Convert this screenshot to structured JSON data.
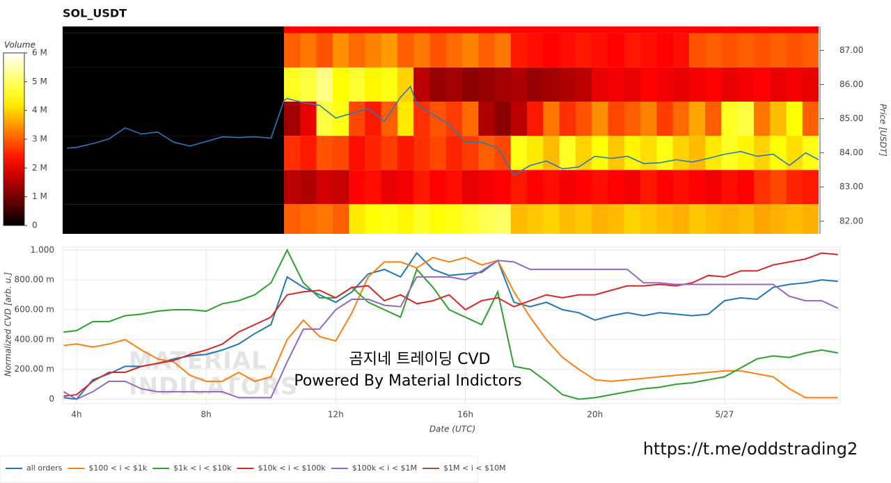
{
  "chart_data": [
    {
      "type": "heatmap",
      "title": "SOL_USDT",
      "x_bins": [
        3.57,
        10.4,
        10.9,
        11.4,
        11.9,
        12.4,
        12.9,
        13.4,
        13.9,
        14.4,
        14.9,
        15.4,
        15.9,
        16.4,
        16.9,
        17.4,
        17.9,
        18.4,
        18.9,
        19.4,
        19.9,
        20.4,
        20.9,
        21.4,
        21.9,
        22.4,
        22.9,
        23.4,
        23.9,
        24.4,
        24.9,
        25.4,
        25.9,
        26.4,
        26.9
      ],
      "y_bins": [
        81.5,
        82.5,
        83.5,
        84.5,
        85.5,
        86.5,
        87.5,
        88.5
      ],
      "z": [
        [
          0,
          3000000.0,
          3100000.0,
          3200000.0,
          3000000.0,
          4200000.0,
          4400000.0,
          4500000.0,
          4300000.0,
          4600000.0,
          4400000.0,
          4500000.0,
          4700000.0,
          4900000.0,
          5000000.0,
          3800000.0,
          3900000.0,
          4000000.0,
          3800000.0,
          3900000.0,
          3700000.0,
          3800000.0,
          4000000.0,
          3900000.0,
          3800000.0,
          3700000.0,
          3900000.0,
          3800000.0,
          3700000.0,
          3800000.0,
          3600000.0,
          3700000.0,
          3800000.0,
          3700000.0
        ],
        [
          0,
          1600000.0,
          1500000.0,
          1800000.0,
          1700000.0,
          2200000.0,
          2300000.0,
          2000000.0,
          2100000.0,
          2400000.0,
          2200000.0,
          2300000.0,
          2000000.0,
          2100000.0,
          2200000.0,
          2400000.0,
          2200000.0,
          2300000.0,
          2100000.0,
          2200000.0,
          2300000.0,
          2200000.0,
          2100000.0,
          2400000.0,
          2200000.0,
          2300000.0,
          2200000.0,
          2100000.0,
          2300000.0,
          2200000.0,
          2600000.0,
          2800000.0,
          2500000.0,
          2400000.0
        ],
        [
          0,
          2600000.0,
          2400000.0,
          2900000.0,
          2800000.0,
          2300000.0,
          2500000.0,
          2700000.0,
          2400000.0,
          2600000.0,
          2800000.0,
          2500000.0,
          2700000.0,
          3000000.0,
          2800000.0,
          4500000.0,
          4200000.0,
          3800000.0,
          4600000.0,
          4000000.0,
          4400000.0,
          3900000.0,
          4300000.0,
          4100000.0,
          4500000.0,
          4000000.0,
          3800000.0,
          4200000.0,
          4600000.0,
          4300000.0,
          4000000.0,
          4400000.0,
          4100000.0,
          4500000.0
        ],
        [
          0,
          1400000.0,
          2000000.0,
          4800000.0,
          4500000.0,
          2800000.0,
          2400000.0,
          3000000.0,
          4200000.0,
          2600000.0,
          2900000.0,
          2700000.0,
          3100000.0,
          1500000.0,
          1200000.0,
          1600000.0,
          2400000.0,
          3200000.0,
          2600000.0,
          2900000.0,
          3400000.0,
          2800000.0,
          3000000.0,
          3300000.0,
          2700000.0,
          3100000.0,
          3600000.0,
          3000000.0,
          4600000.0,
          4800000.0,
          3200000.0,
          3800000.0,
          4400000.0,
          3000000.0
        ],
        [
          0,
          4600000.0,
          4800000.0,
          5200000.0,
          4400000.0,
          4700000.0,
          4300000.0,
          4500000.0,
          4000000.0,
          1600000.0,
          1300000.0,
          1400000.0,
          1200000.0,
          1300000.0,
          1400000.0,
          1500000.0,
          1300000.0,
          1400000.0,
          1500000.0,
          1600000.0,
          2000000.0,
          2100000.0,
          2000000.0,
          2200000.0,
          2100000.0,
          2000000.0,
          2100000.0,
          2200000.0,
          2000000.0,
          2100000.0,
          2200000.0,
          2000000.0,
          2100000.0,
          2000000.0
        ],
        [
          0,
          3000000.0,
          3200000.0,
          2900000.0,
          3400000.0,
          3100000.0,
          3300000.0,
          3500000.0,
          3000000.0,
          3200000.0,
          2900000.0,
          3100000.0,
          3300000.0,
          3000000.0,
          3200000.0,
          2400000.0,
          2300000.0,
          2200000.0,
          2300000.0,
          2400000.0,
          2300000.0,
          2200000.0,
          2400000.0,
          2300000.0,
          2200000.0,
          2300000.0,
          2900000.0,
          3000000.0,
          2900000.0,
          3000000.0,
          2900000.0,
          3000000.0,
          2900000.0,
          3000000.0
        ],
        [
          0,
          2200000.0,
          2200000.0,
          2200000.0,
          2200000.0,
          2200000.0,
          2200000.0,
          2200000.0,
          2200000.0,
          2200000.0,
          2200000.0,
          2200000.0,
          2200000.0,
          2200000.0,
          2200000.0,
          2200000.0,
          2200000.0,
          2200000.0,
          2200000.0,
          2200000.0,
          2200000.0,
          2200000.0,
          2200000.0,
          2200000.0,
          2200000.0,
          2200000.0,
          2200000.0,
          2200000.0,
          2200000.0,
          2200000.0,
          2200000.0,
          2200000.0,
          2200000.0,
          2200000.0
        ]
      ],
      "colorbar": {
        "label": "Volume",
        "clim": [
          0,
          6000000.0
        ],
        "ticks": [
          0,
          {
            "value": 1000000.0,
            "label": "1 M"
          },
          {
            "value": 2000000.0,
            "label": "2 M"
          },
          {
            "value": 3000000.0,
            "label": "3 M"
          },
          {
            "value": 4000000.0,
            "label": "4 M"
          },
          {
            "value": 5000000.0,
            "label": "5 M"
          },
          {
            "value": 6000000.0,
            "label": "6 M"
          }
        ]
      },
      "xlim": [
        3.57,
        26.9
      ],
      "y2lim": [
        81.63,
        87.7
      ],
      "y2ticks": [
        {
          "value": 82,
          "label": "82.00"
        },
        {
          "value": 83,
          "label": "83.00"
        },
        {
          "value": 84,
          "label": "84.00"
        },
        {
          "value": 85,
          "label": "85.00"
        },
        {
          "value": 86,
          "label": "86.00"
        },
        {
          "value": 87,
          "label": "87.00"
        }
      ],
      "y2label": "Price [USDT]",
      "price_line": {
        "color": "#2b78b4",
        "x": [
          3.7,
          4,
          4.5,
          5,
          5.5,
          6,
          6.5,
          7,
          7.5,
          8,
          8.5,
          9,
          9.5,
          10,
          10.4,
          10.5,
          11,
          11.5,
          12,
          12.5,
          13,
          13.5,
          14,
          14.3,
          14.5,
          15,
          15.5,
          16,
          16.5,
          17,
          17.5,
          18,
          18.5,
          19,
          19.5,
          20,
          20.5,
          21,
          21.5,
          22,
          22.5,
          23,
          23.5,
          24,
          24.5,
          25,
          25.5,
          26,
          26.5,
          26.9
        ],
        "values": [
          84.14,
          84.16,
          84.27,
          84.41,
          84.73,
          84.55,
          84.61,
          84.31,
          84.2,
          84.33,
          84.47,
          84.45,
          84.47,
          84.43,
          85.53,
          85.59,
          85.47,
          85.39,
          85.02,
          85.16,
          85.29,
          84.92,
          85.63,
          85.94,
          85.43,
          85.12,
          84.82,
          84.31,
          84.31,
          84.14,
          83.35,
          83.63,
          83.76,
          83.53,
          83.59,
          83.9,
          83.84,
          83.9,
          83.69,
          83.71,
          83.8,
          83.73,
          83.84,
          83.96,
          84.04,
          83.9,
          83.96,
          83.63,
          84.0,
          83.8
        ]
      }
    },
    {
      "type": "line",
      "xlabel": "Date (UTC)",
      "ylabel": "Normalized CVD [arb. u.]",
      "x": [
        3.6,
        4,
        4.5,
        5,
        5.5,
        6,
        6.5,
        7,
        7.5,
        8,
        8.5,
        9,
        9.5,
        10,
        10.5,
        11,
        11.5,
        12,
        12.5,
        13,
        13.5,
        14,
        14.5,
        15,
        15.5,
        16,
        16.5,
        17,
        17.5,
        18,
        18.5,
        19,
        19.5,
        20,
        20.5,
        21,
        21.5,
        22,
        22.5,
        23,
        23.5,
        24,
        24.5,
        25,
        25.5,
        26,
        26.5,
        27,
        27.5
      ],
      "xlim": [
        3.57,
        27.57
      ],
      "xticks": [
        {
          "value": 4,
          "label": "4h"
        },
        {
          "value": 8,
          "label": "8h"
        },
        {
          "value": 12,
          "label": "12h"
        },
        {
          "value": 16,
          "label": "16h"
        },
        {
          "value": 20,
          "label": "20h"
        },
        {
          "value": 24,
          "label": "5/27"
        }
      ],
      "ylim": [
        -0.03,
        1.02
      ],
      "yticks": [
        0,
        {
          "value": 0.2,
          "label": "200.00 m"
        },
        {
          "value": 0.4,
          "label": "400.00 m"
        },
        {
          "value": 0.6,
          "label": "600.00 m"
        },
        {
          "value": 0.8,
          "label": "800.00 m"
        },
        {
          "value": 1,
          "label": "1.000"
        }
      ],
      "grid": true,
      "legend": "bottom-left",
      "series": [
        {
          "name": "all orders",
          "color": "#1f77b4",
          "values": [
            0.01,
            0.0,
            0.13,
            0.17,
            0.22,
            0.22,
            0.24,
            0.27,
            0.29,
            0.3,
            0.33,
            0.37,
            0.44,
            0.5,
            0.82,
            0.75,
            0.7,
            0.65,
            0.72,
            0.84,
            0.87,
            0.82,
            0.98,
            0.87,
            0.83,
            0.84,
            0.85,
            0.93,
            0.65,
            0.62,
            0.65,
            0.6,
            0.58,
            0.53,
            0.56,
            0.58,
            0.56,
            0.58,
            0.57,
            0.56,
            0.57,
            0.66,
            0.68,
            0.67,
            0.75,
            0.77,
            0.78,
            0.8,
            0.79
          ]
        },
        {
          "name": "$100 < i < $1k",
          "color": "#ff7f0e",
          "values": [
            0.36,
            0.37,
            0.35,
            0.37,
            0.4,
            0.33,
            0.27,
            0.25,
            0.16,
            0.12,
            0.12,
            0.18,
            0.12,
            0.15,
            0.4,
            0.53,
            0.42,
            0.39,
            0.58,
            0.82,
            0.92,
            0.92,
            0.88,
            0.95,
            0.92,
            0.95,
            0.9,
            0.93,
            0.72,
            0.55,
            0.4,
            0.28,
            0.2,
            0.13,
            0.12,
            0.13,
            0.14,
            0.15,
            0.16,
            0.17,
            0.18,
            0.19,
            0.19,
            0.17,
            0.15,
            0.07,
            0.01,
            0.01,
            0.01
          ]
        },
        {
          "name": "$1k < i < $10k",
          "color": "#2ca02c",
          "values": [
            0.45,
            0.46,
            0.52,
            0.52,
            0.56,
            0.57,
            0.59,
            0.6,
            0.6,
            0.59,
            0.64,
            0.66,
            0.7,
            0.78,
            1.0,
            0.78,
            0.68,
            0.68,
            0.75,
            0.65,
            0.6,
            0.55,
            0.87,
            0.75,
            0.6,
            0.55,
            0.5,
            0.72,
            0.22,
            0.2,
            0.12,
            0.03,
            0.0,
            0.01,
            0.03,
            0.05,
            0.07,
            0.08,
            0.1,
            0.11,
            0.13,
            0.15,
            0.21,
            0.27,
            0.29,
            0.28,
            0.31,
            0.33,
            0.31
          ]
        },
        {
          "name": "$10k < i < $100k",
          "color": "#d62728",
          "values": [
            0.02,
            0.03,
            0.12,
            0.18,
            0.18,
            0.22,
            0.24,
            0.26,
            0.3,
            0.33,
            0.37,
            0.45,
            0.5,
            0.55,
            0.7,
            0.72,
            0.73,
            0.68,
            0.75,
            0.76,
            0.66,
            0.7,
            0.64,
            0.66,
            0.7,
            0.6,
            0.66,
            0.68,
            0.62,
            0.66,
            0.7,
            0.68,
            0.7,
            0.7,
            0.73,
            0.76,
            0.76,
            0.77,
            0.76,
            0.78,
            0.83,
            0.82,
            0.86,
            0.86,
            0.9,
            0.92,
            0.94,
            0.98,
            0.97
          ]
        },
        {
          "name": "$100k < i < $1M",
          "color": "#9467bd",
          "values": [
            0.05,
            0.0,
            0.05,
            0.12,
            0.12,
            0.07,
            0.05,
            0.05,
            0.05,
            0.05,
            0.05,
            0.01,
            0.01,
            0.01,
            0.25,
            0.47,
            0.47,
            0.6,
            0.67,
            0.67,
            0.63,
            0.62,
            0.82,
            0.82,
            0.82,
            0.8,
            0.86,
            0.93,
            0.92,
            0.87,
            0.87,
            0.87,
            0.87,
            0.87,
            0.87,
            0.87,
            0.78,
            0.78,
            0.77,
            0.77,
            0.77,
            0.77,
            0.77,
            0.77,
            0.77,
            0.69,
            0.66,
            0.66,
            0.61
          ]
        },
        {
          "name": "$1M < i < $10M",
          "color": "#8c564b",
          "values": [
            null,
            null,
            null,
            null,
            null,
            null,
            null,
            null,
            null,
            null,
            null,
            null,
            null,
            null,
            null,
            null,
            null,
            null,
            null,
            null,
            null,
            null,
            null,
            null,
            null,
            null,
            null,
            null,
            null,
            null,
            null,
            null,
            null,
            null,
            null,
            null,
            null,
            null,
            null,
            null,
            null,
            null,
            null,
            null,
            null,
            null,
            null,
            null,
            null
          ]
        }
      ],
      "watermark": [
        "MATERIAL",
        "INDICATORS"
      ],
      "annotations": [
        "곰지네 트레이딩 CVD",
        "Powered By Material Indictors",
        "https://t.me/oddstrading2"
      ]
    }
  ]
}
